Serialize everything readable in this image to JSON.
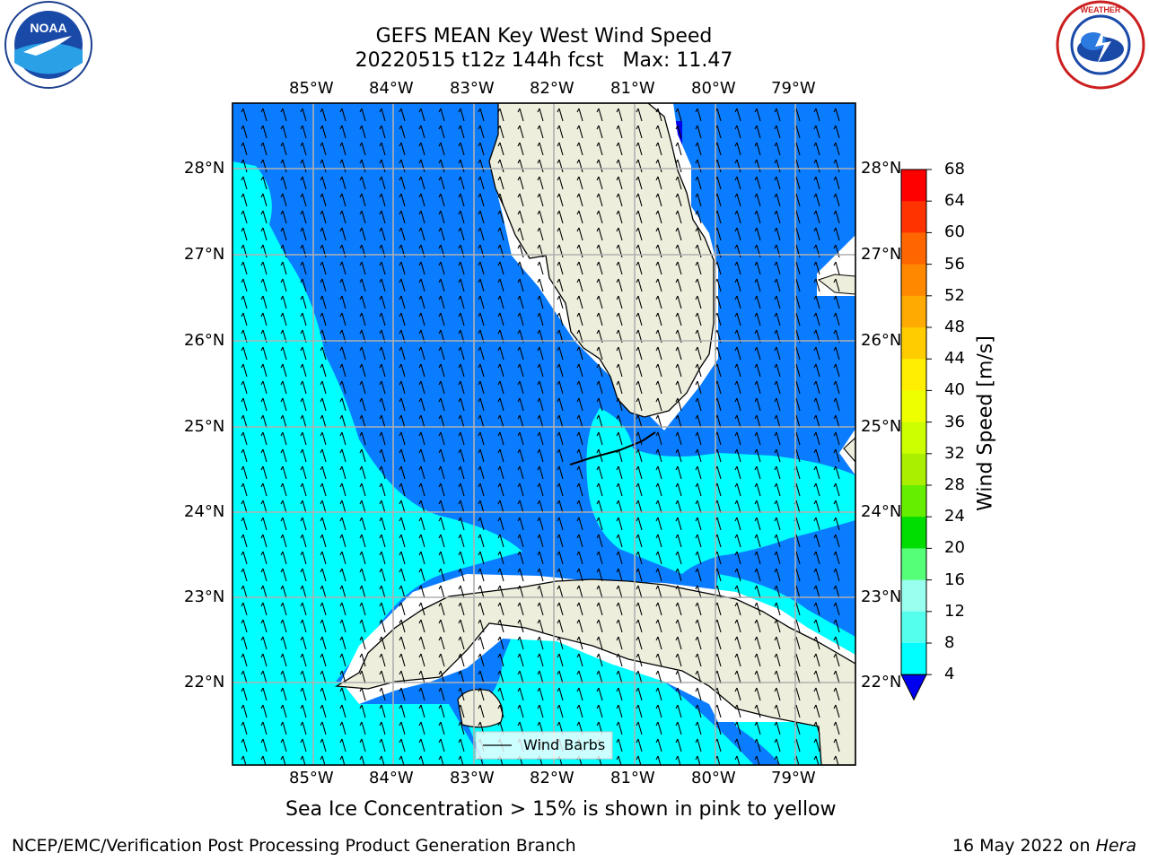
{
  "header": {
    "title_line1": "GEFS MEAN Key West Wind Speed",
    "title_line2": "20220515 t12z 144h fcst   Max: 11.47"
  },
  "logos": {
    "left": {
      "icon": "noaa-logo",
      "text": "NOAA"
    },
    "right": {
      "icon": "nws-logo",
      "text": "NATIONAL WEATHER SERVICE"
    }
  },
  "map": {
    "lon_ticks": [
      "85°W",
      "84°W",
      "83°W",
      "82°W",
      "81°W",
      "80°W",
      "79°W"
    ],
    "lat_ticks": [
      "28°N",
      "27°N",
      "26°N",
      "25°N",
      "24°N",
      "23°N",
      "22°N"
    ],
    "legend_label": "Wind Barbs",
    "colors": {
      "land": "#eeeedd",
      "ws_4_8": "#0a7cff",
      "ws_8_12": "#00ffff",
      "coast": "#000000",
      "grid": "#b0b0b0"
    }
  },
  "colorbar": {
    "label": "Wind Speed [m/s]",
    "ticks": [
      "68",
      "64",
      "60",
      "56",
      "52",
      "48",
      "44",
      "40",
      "36",
      "32",
      "28",
      "24",
      "20",
      "16",
      "12",
      "8",
      "4"
    ],
    "colors": [
      "#ff0000",
      "#ff3300",
      "#ff6600",
      "#ff8800",
      "#ffaa00",
      "#ffcc00",
      "#ffee00",
      "#eeff00",
      "#ccff00",
      "#aaee00",
      "#66ee00",
      "#00dd00",
      "#55ff77",
      "#99ffee",
      "#55ffee",
      "#00ffff",
      "#0a7cff"
    ],
    "extend_color": "#0000ee"
  },
  "caption": "Sea Ice Concentration > 15% is shown in pink to yellow",
  "footer": {
    "left": "NCEP/EMC/Verification Post Processing Product Generation Branch",
    "right_prefix": "16 May 2022 on ",
    "right_host": "Hera"
  }
}
